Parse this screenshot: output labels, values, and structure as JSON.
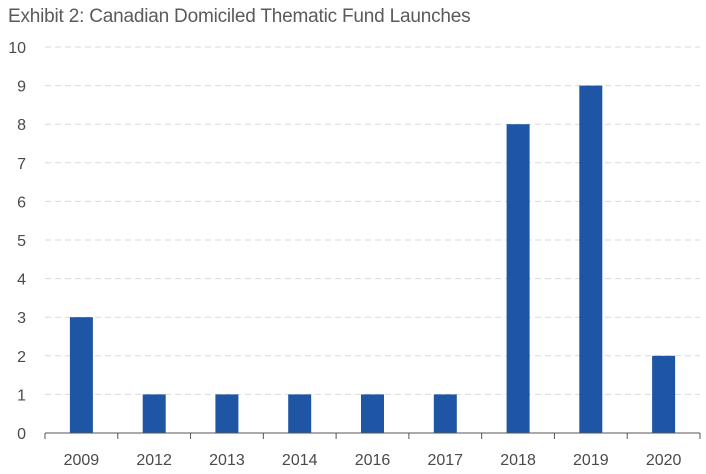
{
  "chart_data": {
    "type": "bar",
    "title": "Exhibit 2: Canadian Domiciled Thematic Fund Launches",
    "xlabel": "",
    "ylabel": "",
    "categories": [
      "2009",
      "2012",
      "2013",
      "2014",
      "2016",
      "2017",
      "2018",
      "2019",
      "2020"
    ],
    "values": [
      3,
      1,
      1,
      1,
      1,
      1,
      8,
      9,
      2
    ],
    "ylim": [
      0,
      10
    ],
    "yticks": [
      0,
      1,
      2,
      3,
      4,
      5,
      6,
      7,
      8,
      9,
      10
    ],
    "grid": true,
    "legend": "none",
    "bar_color": "#1f55a5",
    "grid_color": "#d9d9d9",
    "axis_color": "#555555"
  }
}
